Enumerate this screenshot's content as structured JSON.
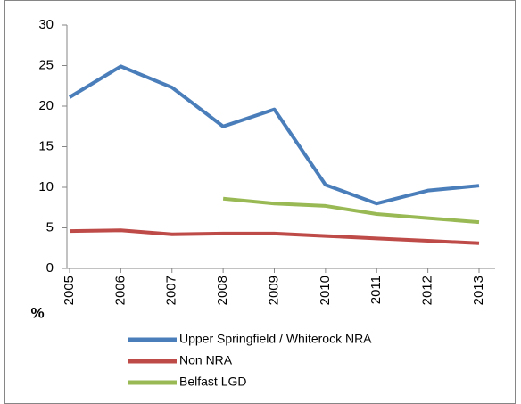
{
  "chart_data": {
    "type": "line",
    "y_label": "%",
    "categories": [
      "2005",
      "2006",
      "2007",
      "2008",
      "2009",
      "2010",
      "2011",
      "2012",
      "2013"
    ],
    "series": [
      {
        "name": "Upper Springfield / Whiterock NRA",
        "color": "#4a7ebb",
        "values": [
          21.1,
          24.9,
          22.3,
          17.5,
          19.6,
          10.3,
          8.0,
          9.6,
          10.2
        ]
      },
      {
        "name": "Non NRA",
        "color": "#be4b48",
        "values": [
          4.6,
          4.7,
          4.2,
          4.3,
          4.3,
          4.0,
          3.7,
          3.4,
          3.1
        ]
      },
      {
        "name": "Belfast LGD",
        "color": "#98b954",
        "values": [
          null,
          null,
          null,
          8.6,
          8.0,
          7.7,
          6.7,
          6.2,
          5.7
        ]
      }
    ],
    "ylim": [
      0,
      30
    ],
    "yticks": [
      0,
      5,
      10,
      15,
      20,
      25,
      30
    ],
    "grid": false
  }
}
